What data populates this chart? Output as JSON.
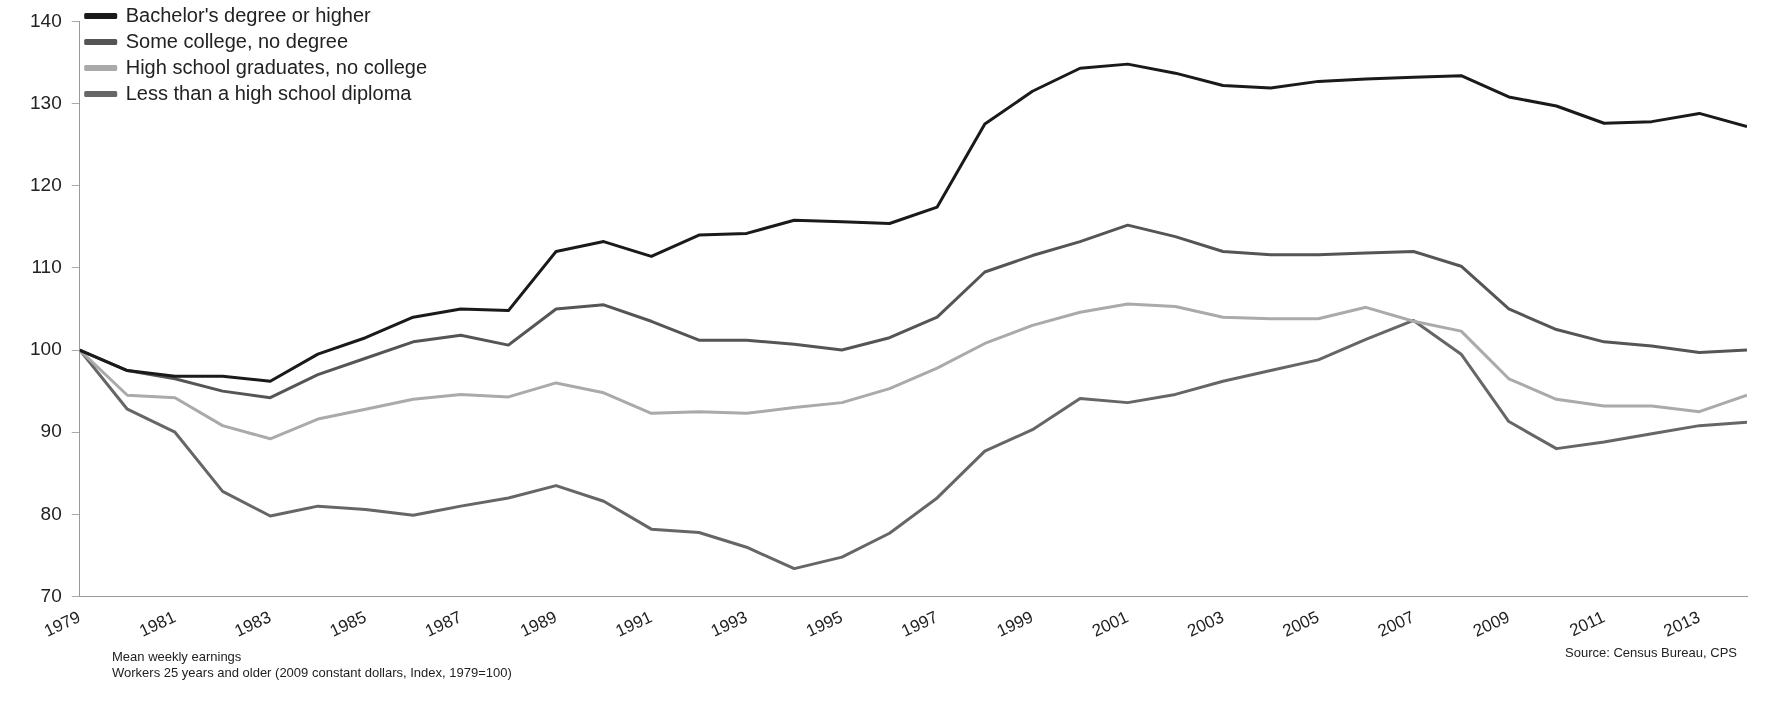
{
  "chart_data": {
    "type": "line",
    "x": [
      1979,
      1980,
      1981,
      1982,
      1983,
      1984,
      1985,
      1986,
      1987,
      1988,
      1989,
      1990,
      1991,
      1992,
      1993,
      1994,
      1995,
      1996,
      1997,
      1998,
      1999,
      2000,
      2001,
      2002,
      2003,
      2004,
      2005,
      2006,
      2007,
      2008,
      2009,
      2010,
      2011,
      2012,
      2013,
      2014
    ],
    "series": [
      {
        "name": "Bachelor's degree or higher",
        "color": "#1a1a1a",
        "values": [
          100,
          97.5,
          96.8,
          96.8,
          96.2,
          99.5,
          101.5,
          104,
          105,
          104.8,
          112,
          113.2,
          111.4,
          114,
          114.2,
          115.8,
          115.6,
          115.4,
          117.4,
          127.5,
          131.5,
          134.3,
          134.8,
          133.7,
          132.2,
          131.9,
          132.7,
          133,
          133.2,
          133.4,
          130.8,
          129.7,
          127.6,
          127.8,
          128.8,
          127.2
        ]
      },
      {
        "name": "Some college, no degree",
        "color": "#555555",
        "values": [
          100,
          97.5,
          96.5,
          95,
          94.2,
          97,
          99,
          101,
          101.8,
          100.6,
          105,
          105.5,
          103.5,
          101.2,
          101.2,
          100.7,
          100,
          101.5,
          104,
          109.5,
          111.5,
          113.2,
          115.2,
          113.8,
          112,
          111.6,
          111.6,
          111.8,
          112,
          110.2,
          105,
          102.5,
          101,
          100.5,
          99.7,
          100
        ]
      },
      {
        "name": "High school graduates, no college",
        "color": "#aaaaaa",
        "values": [
          100,
          94.5,
          94.2,
          90.8,
          89.2,
          91.6,
          92.8,
          94,
          94.6,
          94.3,
          96,
          94.8,
          92.3,
          92.5,
          92.3,
          93,
          93.6,
          95.3,
          97.8,
          100.8,
          103,
          104.6,
          105.6,
          105.3,
          104,
          103.8,
          103.8,
          105.2,
          103.5,
          102.3,
          96.5,
          94,
          93.2,
          93.2,
          92.5,
          94.5
        ]
      },
      {
        "name": "Less than a high school diploma",
        "color": "#666666",
        "values": [
          100,
          92.8,
          90,
          82.8,
          79.8,
          81,
          80.6,
          79.9,
          81,
          82,
          83.5,
          81.6,
          78.2,
          77.8,
          76,
          73.4,
          74.8,
          77.7,
          82,
          87.7,
          90.3,
          94.1,
          93.6,
          94.6,
          96.2,
          97.5,
          98.8,
          101.3,
          103.6,
          99.5,
          91.3,
          88,
          88.8,
          89.8,
          90.8,
          91.2
        ]
      }
    ],
    "xlim": [
      1979,
      2014
    ],
    "xticks": [
      1979,
      1981,
      1983,
      1985,
      1987,
      1989,
      1991,
      1993,
      1995,
      1997,
      1999,
      2001,
      2003,
      2005,
      2007,
      2009,
      2011,
      2013
    ],
    "ylim": [
      70,
      140
    ],
    "yticks": [
      70,
      80,
      90,
      100,
      110,
      120,
      130,
      140
    ],
    "grid": false,
    "legend": "top",
    "marker": "none",
    "line_style": "solid",
    "annotations": [
      "Mean weekly earnings",
      "Workers 25 years and older (2009 constant dollars, Index, 1979=100)",
      "Source: Census Bureau, CPS"
    ]
  }
}
